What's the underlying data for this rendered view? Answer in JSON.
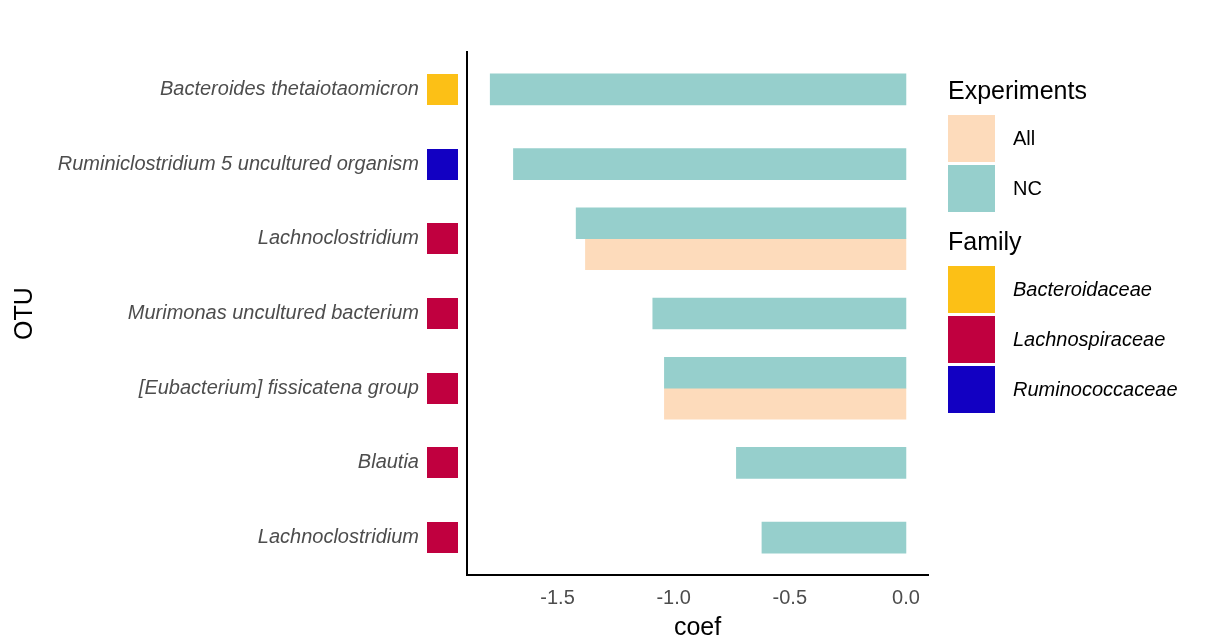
{
  "chart_data": [
    {
      "type": "bar",
      "orientation": "horizontal",
      "xlabel": "coef",
      "ylabel": "OTU",
      "legend_title": "Experiments",
      "legend": "right",
      "categories": [
        "Bacteroides thetaiotaomicron",
        "Ruminiclostridium 5 uncultured organism",
        "Lachnoclostridium",
        "Murimonas uncultured bacterium",
        "[Eubacterium] fissicatena group",
        "Blautia",
        "Lachnoclostridium"
      ],
      "series": [
        {
          "name": "All",
          "color": "#fddbbb",
          "values": [
            null,
            null,
            -1.38,
            null,
            -1.04,
            null,
            null
          ]
        },
        {
          "name": "NC",
          "color": "#96cfcc",
          "values": [
            -1.79,
            -1.69,
            -1.42,
            -1.09,
            -1.04,
            -0.73,
            -0.62
          ]
        }
      ],
      "xlim": [
        -1.89,
        0.095
      ],
      "xticks": [
        -1.5,
        {
          "value": -1.0,
          "label": "-1.0"
        },
        -0.5,
        {
          "value": 0.0,
          "label": "0.0"
        }
      ],
      "grid": false
    },
    {
      "type": "other",
      "legend_title": "Family",
      "legend": "right",
      "colors": [
        "#fcc016",
        "#1200c2",
        "#c0003f",
        "#c0003f",
        "#c0003f",
        "#c0003f",
        "#c0003f"
      ],
      "series": [
        {
          "name": "Bacteroidaceae",
          "color": "#fcc016"
        },
        {
          "name": "Lachnospiraceae",
          "color": "#c0003f"
        },
        {
          "name": "Ruminococcaceae",
          "color": "#1200c2"
        }
      ]
    }
  ]
}
